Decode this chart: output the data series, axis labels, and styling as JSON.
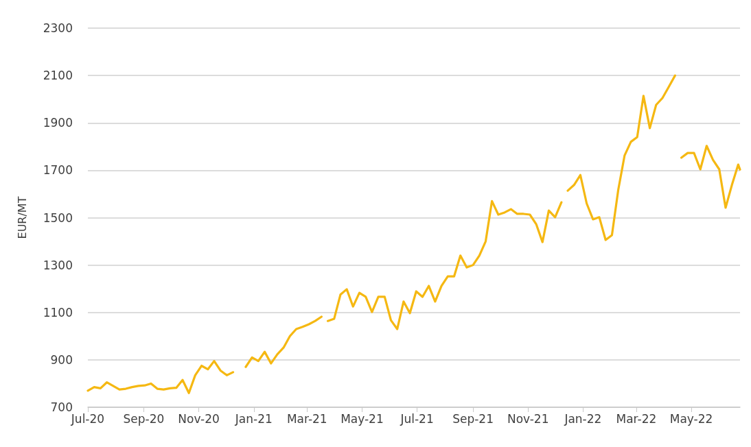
{
  "chart_data": {
    "type": "line",
    "ylabel": "EUR/MT",
    "color": "#f5b812",
    "line_style": "solid",
    "marker": "none",
    "grid": "y",
    "xlim": [
      "2020-07-01",
      "2022-06-24"
    ],
    "xticks": [
      {
        "value": "2020-07-01",
        "label": "Jul-20"
      },
      {
        "value": "2020-09-01",
        "label": "Sep-20"
      },
      {
        "value": "2020-11-01",
        "label": "Nov-20"
      },
      {
        "value": "2021-01-01",
        "label": "Jan-21"
      },
      {
        "value": "2021-03-01",
        "label": "Mar-21"
      },
      {
        "value": "2021-05-01",
        "label": "May-21"
      },
      {
        "value": "2021-07-01",
        "label": "Jul-21"
      },
      {
        "value": "2021-09-01",
        "label": "Sep-21"
      },
      {
        "value": "2021-11-01",
        "label": "Nov-21"
      },
      {
        "value": "2022-01-01",
        "label": "Jan-22"
      },
      {
        "value": "2022-03-01",
        "label": "Mar-22"
      },
      {
        "value": "2022-05-01",
        "label": "May-22"
      }
    ],
    "ylim": [
      700,
      2300
    ],
    "yticks": [
      700,
      900,
      1100,
      1300,
      1500,
      1700,
      1900,
      2100,
      2300
    ],
    "x": [
      "2020-07-01",
      "2020-07-08",
      "2020-07-15",
      "2020-07-22",
      "2020-07-29",
      "2020-08-05",
      "2020-08-12",
      "2020-08-19",
      "2020-08-26",
      "2020-09-02",
      "2020-09-09",
      "2020-09-16",
      "2020-09-23",
      "2020-09-30",
      "2020-10-07",
      "2020-10-14",
      "2020-10-21",
      "2020-10-28",
      "2020-11-04",
      "2020-11-11",
      "2020-11-18",
      "2020-11-25",
      "2020-12-02",
      "2020-12-09",
      "2020-12-16",
      "2020-12-23",
      "2020-12-30",
      "2021-01-06",
      "2021-01-13",
      "2021-01-20",
      "2021-01-27",
      "2021-02-03",
      "2021-02-10",
      "2021-02-17",
      "2021-02-24",
      "2021-03-03",
      "2021-03-10",
      "2021-03-17",
      "2021-03-20",
      "2021-03-24",
      "2021-03-31",
      "2021-04-07",
      "2021-04-14",
      "2021-04-21",
      "2021-04-28",
      "2021-05-05",
      "2021-05-12",
      "2021-05-19",
      "2021-05-26",
      "2021-06-02",
      "2021-06-09",
      "2021-06-16",
      "2021-06-23",
      "2021-06-30",
      "2021-07-07",
      "2021-07-14",
      "2021-07-21",
      "2021-07-28",
      "2021-08-04",
      "2021-08-11",
      "2021-08-18",
      "2021-08-25",
      "2021-09-01",
      "2021-09-08",
      "2021-09-15",
      "2021-09-22",
      "2021-09-29",
      "2021-10-06",
      "2021-10-13",
      "2021-10-20",
      "2021-10-27",
      "2021-11-03",
      "2021-11-10",
      "2021-11-17",
      "2021-11-24",
      "2021-12-01",
      "2021-12-08",
      "2021-12-11",
      "2021-12-15",
      "2021-12-22",
      "2021-12-29",
      "2022-01-05",
      "2022-01-12",
      "2022-01-19",
      "2022-01-26",
      "2022-02-02",
      "2022-02-09",
      "2022-02-16",
      "2022-02-23",
      "2022-03-02",
      "2022-03-09",
      "2022-03-16",
      "2022-03-23",
      "2022-03-30",
      "2022-04-06",
      "2022-04-13",
      "2022-04-16",
      "2022-04-20",
      "2022-04-27",
      "2022-05-04",
      "2022-05-11",
      "2022-05-18",
      "2022-05-25",
      "2022-06-01",
      "2022-06-08",
      "2022-06-15",
      "2022-06-22",
      "2022-06-24"
    ],
    "values": [
      770,
      785,
      780,
      805,
      790,
      775,
      778,
      785,
      790,
      792,
      800,
      778,
      775,
      780,
      782,
      815,
      760,
      835,
      875,
      860,
      895,
      855,
      835,
      848,
      null,
      870,
      910,
      895,
      934,
      885,
      923,
      952,
      1000,
      1030,
      1039,
      1050,
      1064,
      1082,
      null,
      1064,
      1073,
      1175,
      1198,
      1125,
      1183,
      1166,
      1102,
      1166,
      1166,
      1067,
      1030,
      1146,
      1097,
      1189,
      1166,
      1212,
      1146,
      1212,
      1252,
      1252,
      1340,
      1290,
      1300,
      1340,
      1400,
      1570,
      1513,
      1522,
      1536,
      1516,
      1516,
      1513,
      1473,
      1397,
      1530,
      1502,
      1565,
      null,
      1614,
      1638,
      1680,
      1560,
      1493,
      1502,
      1406,
      1426,
      1617,
      1762,
      1820,
      1840,
      2014,
      1878,
      1976,
      2005,
      2052,
      2100,
      null,
      1753,
      1773,
      1773,
      1704,
      1803,
      1744,
      1704,
      1542,
      1638,
      1724,
      1703
    ]
  }
}
